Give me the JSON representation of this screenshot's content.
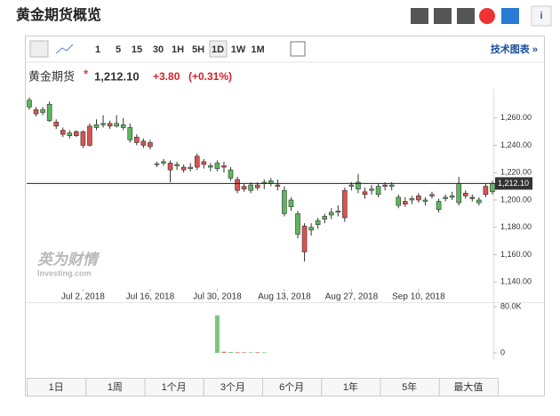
{
  "header": {
    "title": "黄金期货概览"
  },
  "toolbar": {
    "intervals": [
      "1",
      "5",
      "15",
      "30",
      "1H",
      "5H",
      "1D",
      "1W",
      "1M"
    ],
    "active": "1D",
    "link": "技术图表 »"
  },
  "quote": {
    "name": "黄金期货",
    "price": "1,212.10",
    "change": "+3.80",
    "change_pct": "(+0.31%)"
  },
  "watermark": {
    "brand": "英为财情",
    "site": "Investing.com"
  },
  "ranges": [
    "1日",
    "1周",
    "1个月",
    "3个月",
    "6个月",
    "1年",
    "5年",
    "最大值"
  ],
  "chart_data": {
    "type": "candlestick",
    "categories": [
      null,
      null,
      null,
      null,
      null,
      null,
      null,
      null,
      "Jul 2, 2018",
      null,
      null,
      null,
      null,
      null,
      null,
      null,
      null,
      null,
      "Jul 16, 2018",
      null,
      null,
      null,
      null,
      null,
      null,
      null,
      null,
      null,
      "Jul 30, 2018",
      null,
      null,
      null,
      null,
      null,
      null,
      null,
      null,
      null,
      "Aug 13, 2018",
      null,
      null,
      null,
      null,
      null,
      null,
      null,
      null,
      null,
      "Aug 27, 2018",
      null,
      null,
      null,
      null,
      null,
      null,
      null,
      null,
      null,
      "Sep 10, 2018",
      null,
      null,
      null,
      null,
      null,
      null,
      null,
      null,
      null,
      null,
      null
    ],
    "open": [
      1268,
      1266,
      1264,
      1258,
      1257,
      1251,
      1247,
      1250,
      1250,
      1254,
      1253,
      1255,
      1256,
      1254,
      1253,
      1244,
      1246,
      1243,
      1242,
      1226,
      1227,
      1227,
      1225,
      1224,
      1223,
      1232,
      1228,
      1224,
      1223,
      1225,
      1216,
      1215,
      1210,
      1207,
      1211,
      1212,
      1212,
      1211,
      1190,
      1195,
      1175,
      1181,
      1178,
      1182,
      1186,
      1189,
      1191,
      1207,
      1210,
      1208,
      1206,
      1207,
      1204,
      1211,
      1210,
      1196,
      1199,
      1200,
      1203,
      1199,
      1204,
      1193,
      1201,
      1202,
      1198,
      1205,
      1202,
      1198,
      1210,
      1206
    ],
    "high": [
      1275,
      1268,
      1268,
      1272,
      1259,
      1253,
      1251,
      1251,
      1251,
      1256,
      1259,
      1262,
      1258,
      1262,
      1260,
      1256,
      1248,
      1245,
      1244,
      1228,
      1230,
      1229,
      1228,
      1226,
      1227,
      1234,
      1230,
      1227,
      1229,
      1228,
      1224,
      1217,
      1212,
      1213,
      1213,
      1215,
      1216,
      1215,
      1210,
      1202,
      1192,
      1183,
      1183,
      1187,
      1190,
      1194,
      1196,
      1209,
      1213,
      1219,
      1209,
      1211,
      1212,
      1213,
      1213,
      1204,
      1202,
      1203,
      1205,
      1202,
      1206,
      1201,
      1204,
      1206,
      1217,
      1207,
      1204,
      1202,
      1212,
      1214
    ],
    "low": [
      1266,
      1261,
      1262,
      1257,
      1252,
      1246,
      1245,
      1246,
      1238,
      1239,
      1251,
      1253,
      1252,
      1253,
      1251,
      1242,
      1240,
      1238,
      1237,
      1224,
      1225,
      1213,
      1222,
      1220,
      1221,
      1222,
      1223,
      1221,
      1221,
      1220,
      1214,
      1205,
      1206,
      1205,
      1207,
      1208,
      1210,
      1207,
      1188,
      1192,
      1172,
      1155,
      1174,
      1179,
      1183,
      1186,
      1188,
      1184,
      1207,
      1205,
      1201,
      1204,
      1202,
      1207,
      1207,
      1194,
      1195,
      1197,
      1198,
      1196,
      1201,
      1191,
      1199,
      1200,
      1196,
      1201,
      1199,
      1196,
      1202,
      1204
    ],
    "close": [
      1273,
      1263,
      1266,
      1270,
      1254,
      1248,
      1249,
      1247,
      1240,
      1240,
      1255,
      1256,
      1254,
      1256,
      1255,
      1253,
      1242,
      1240,
      1239,
      1226.5,
      1228,
      1222,
      1226,
      1222,
      1224,
      1224,
      1226,
      1225,
      1227,
      1224,
      1222,
      1207,
      1208,
      1211,
      1209,
      1213,
      1214,
      1210,
      1207,
      1200,
      1190,
      1162,
      1180,
      1185,
      1188,
      1191,
      1192,
      1187,
      1211,
      1213,
      1204,
      1208,
      1210,
      1210,
      1211,
      1202,
      1197,
      1201,
      1200,
      1200,
      1203,
      1199,
      1202,
      1203,
      1212,
      1203,
      1201,
      1200,
      1204,
      1212.1
    ],
    "up_color": "#5cb85c",
    "down_color": "#d9534f",
    "ylim": [
      1135,
      1278
    ],
    "yticks": [
      {
        "value": 1140,
        "label": "1,140.00"
      },
      {
        "value": 1160,
        "label": "1,160.00"
      },
      {
        "value": 1180,
        "label": "1,180.00"
      },
      {
        "value": 1200,
        "label": "1,200.00"
      },
      {
        "value": 1220,
        "label": "1,220.00"
      },
      {
        "value": 1240,
        "label": "1,240.00"
      },
      {
        "value": 1260,
        "label": "1,260.00"
      }
    ],
    "price_line": {
      "value": 1212.1,
      "label": "1,212.10"
    },
    "volume": [
      null,
      null,
      null,
      null,
      null,
      null,
      null,
      null,
      null,
      null,
      null,
      null,
      null,
      null,
      null,
      null,
      null,
      null,
      null,
      null,
      null,
      null,
      null,
      null,
      null,
      null,
      null,
      null,
      65000,
      2000,
      1500,
      1200,
      1000,
      1000,
      1200,
      1000,
      null,
      null,
      null,
      null,
      null,
      null,
      null,
      null,
      null,
      null,
      null,
      null,
      null,
      null,
      null,
      null,
      null,
      null,
      null,
      null,
      null,
      null,
      null,
      null,
      null,
      null,
      null,
      null,
      null,
      null,
      null,
      null,
      null,
      null
    ],
    "volume_ylim": [
      0,
      80000
    ],
    "volume_yticks": [
      0,
      {
        "value": 80000,
        "label": "80.0K"
      }
    ],
    "grid": false
  }
}
